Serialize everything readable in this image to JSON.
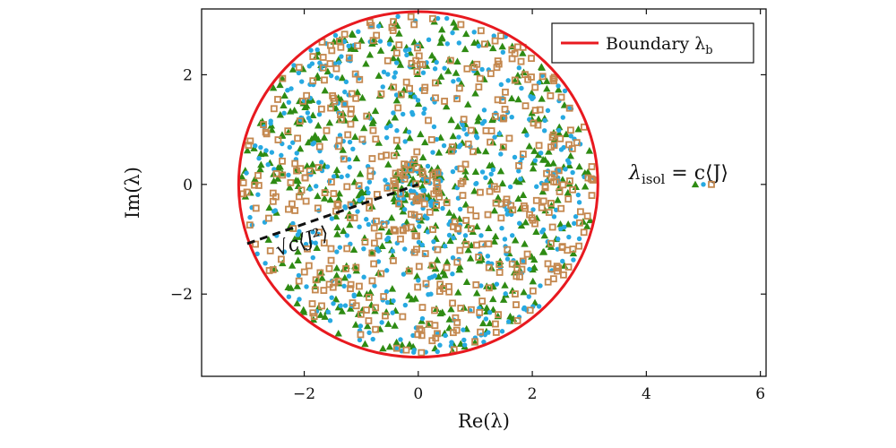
{
  "chart_data": {
    "type": "scatter",
    "title": "",
    "xlabel": "Re(λ)",
    "ylabel": "Im(λ)",
    "xlim": [
      -3.8,
      6.1
    ],
    "ylim": [
      -3.5,
      3.2
    ],
    "xticks": [
      -2,
      0,
      2,
      4,
      6
    ],
    "yticks": [
      -2,
      0,
      2
    ],
    "xtick_labels": [
      "−2",
      "0",
      "2",
      "4",
      "6"
    ],
    "ytick_labels": [
      "−2",
      "0",
      "2"
    ],
    "grid": false,
    "legend": {
      "placement": "top-right",
      "entries": [
        {
          "label": "Boundary λ",
          "subscript": "b",
          "color": "#e8191f"
        }
      ]
    },
    "boundary": {
      "type": "circle",
      "center": [
        0,
        0
      ],
      "radius": 3.15,
      "color": "#e8191f"
    },
    "annotations": {
      "radius_label": "√c⟨J²⟩",
      "radius_line": {
        "from": [
          -3.0,
          -1.08
        ],
        "to": [
          0,
          0
        ]
      },
      "isolated_label_main": "λ",
      "isolated_label_sub": "isol",
      "isolated_label_rest": " = c⟨J⟩",
      "isolated_point": [
        5.0,
        0
      ]
    },
    "series": [
      {
        "marker": "triangle",
        "color": "#2e8b13",
        "count": 520
      },
      {
        "marker": "circle",
        "color": "#27a9e1",
        "count": 460
      },
      {
        "marker": "square",
        "color": "#c4884f",
        "count": 440
      }
    ]
  }
}
